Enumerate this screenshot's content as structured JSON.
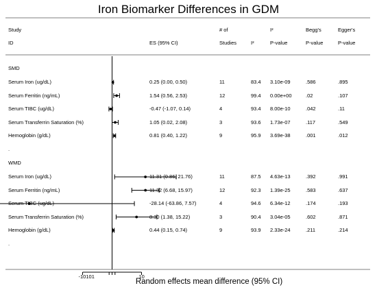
{
  "chart_data": {
    "type": "forest",
    "title": "Iron Biomarker Differences in GDM",
    "xlabel": "Random effects mean difference (95% CI)",
    "x_ticks": [
      "-10",
      "1",
      "0",
      "1",
      "10"
    ],
    "header": {
      "study_top": "Study",
      "study_bottom": "ID",
      "es": "ES (95% CI)",
      "n_top": "# of",
      "n_bottom": "Studies",
      "i2": "I²",
      "i2p_top": "I²",
      "i2p_bottom": "P-value",
      "begg_top": "Begg's",
      "begg_bottom": "P-value",
      "egger_top": "Egger's",
      "egger_bottom": "P-value"
    },
    "groups": [
      {
        "label": "SMD",
        "spacer": ".",
        "rows": [
          {
            "study": "Serum Iron (ug/dL)",
            "es": 0.25,
            "lo": 0.0,
            "hi": 0.5,
            "es_text": "0.25 (0.00, 0.50)",
            "n": "11",
            "i2": "83.4",
            "i2p": "3.10e-09",
            "begg": ".586",
            "egger": ".895"
          },
          {
            "study": "Serum Ferritin (ng/mL)",
            "es": 1.54,
            "lo": 0.56,
            "hi": 2.53,
            "es_text": "1.54 (0.56, 2.53)",
            "n": "12",
            "i2": "99.4",
            "i2p": "0.00e+00",
            "begg": ".02",
            "egger": ".107"
          },
          {
            "study": "Serum TIBC (ug/dL)",
            "es": -0.47,
            "lo": -1.07,
            "hi": 0.14,
            "es_text": "-0.47 (-1.07, 0.14)",
            "n": "4",
            "i2": "93.4",
            "i2p": "8.00e-10",
            "begg": ".042",
            "egger": ".11"
          },
          {
            "study": "Serum Transferrin Saturation (%)",
            "es": 1.05,
            "lo": 0.02,
            "hi": 2.08,
            "es_text": "1.05 (0.02, 2.08)",
            "n": "3",
            "i2": "93.6",
            "i2p": "1.73e-07",
            "begg": ".117",
            "egger": ".549"
          },
          {
            "study": "Hemoglobin (g/dL)",
            "es": 0.81,
            "lo": 0.4,
            "hi": 1.22,
            "es_text": "0.81 (0.40, 1.22)",
            "n": "9",
            "i2": "95.9",
            "i2p": "3.69e-38",
            "begg": ".001",
            "egger": ".012"
          }
        ]
      },
      {
        "label": "WMD",
        "spacer": ".",
        "rows": [
          {
            "study": "Serum Iron (ug/dL)",
            "es": 11.31,
            "lo": 0.86,
            "hi": 21.76,
            "es_text": "11.31 (0.86, 21.76)",
            "n": "11",
            "i2": "87.5",
            "i2p": "4.63e-13",
            "begg": ".392",
            "egger": ".991"
          },
          {
            "study": "Serum Ferritin (ng/mL)",
            "es": 11.32,
            "lo": 6.68,
            "hi": 15.97,
            "es_text": "11.32 (6.68, 15.97)",
            "n": "12",
            "i2": "92.3",
            "i2p": "1.39e-25",
            "begg": ".583",
            "egger": ".637"
          },
          {
            "study": "Serum TIBC (ug/dL)",
            "es": -28.14,
            "lo": -63.86,
            "hi": 7.57,
            "es_text": "-28.14 (-63.86, 7.57)",
            "n": "4",
            "i2": "94.6",
            "i2p": "6.34e-12",
            "begg": ".174",
            "egger": ".193"
          },
          {
            "study": "Serum Transferrin Saturation (%)",
            "es": 8.3,
            "lo": 1.38,
            "hi": 15.22,
            "es_text": "8.30 (1.38, 15.22)",
            "n": "3",
            "i2": "90.4",
            "i2p": "3.04e-05",
            "begg": ".602",
            "egger": ".871"
          },
          {
            "study": "Hemoglobin (g/dL)",
            "es": 0.44,
            "lo": 0.15,
            "hi": 0.74,
            "es_text": "0.44 (0.15, 0.74)",
            "n": "9",
            "i2": "93.9",
            "i2p": "2.33e-24",
            "begg": ".211",
            "egger": ".214"
          }
        ]
      }
    ]
  }
}
